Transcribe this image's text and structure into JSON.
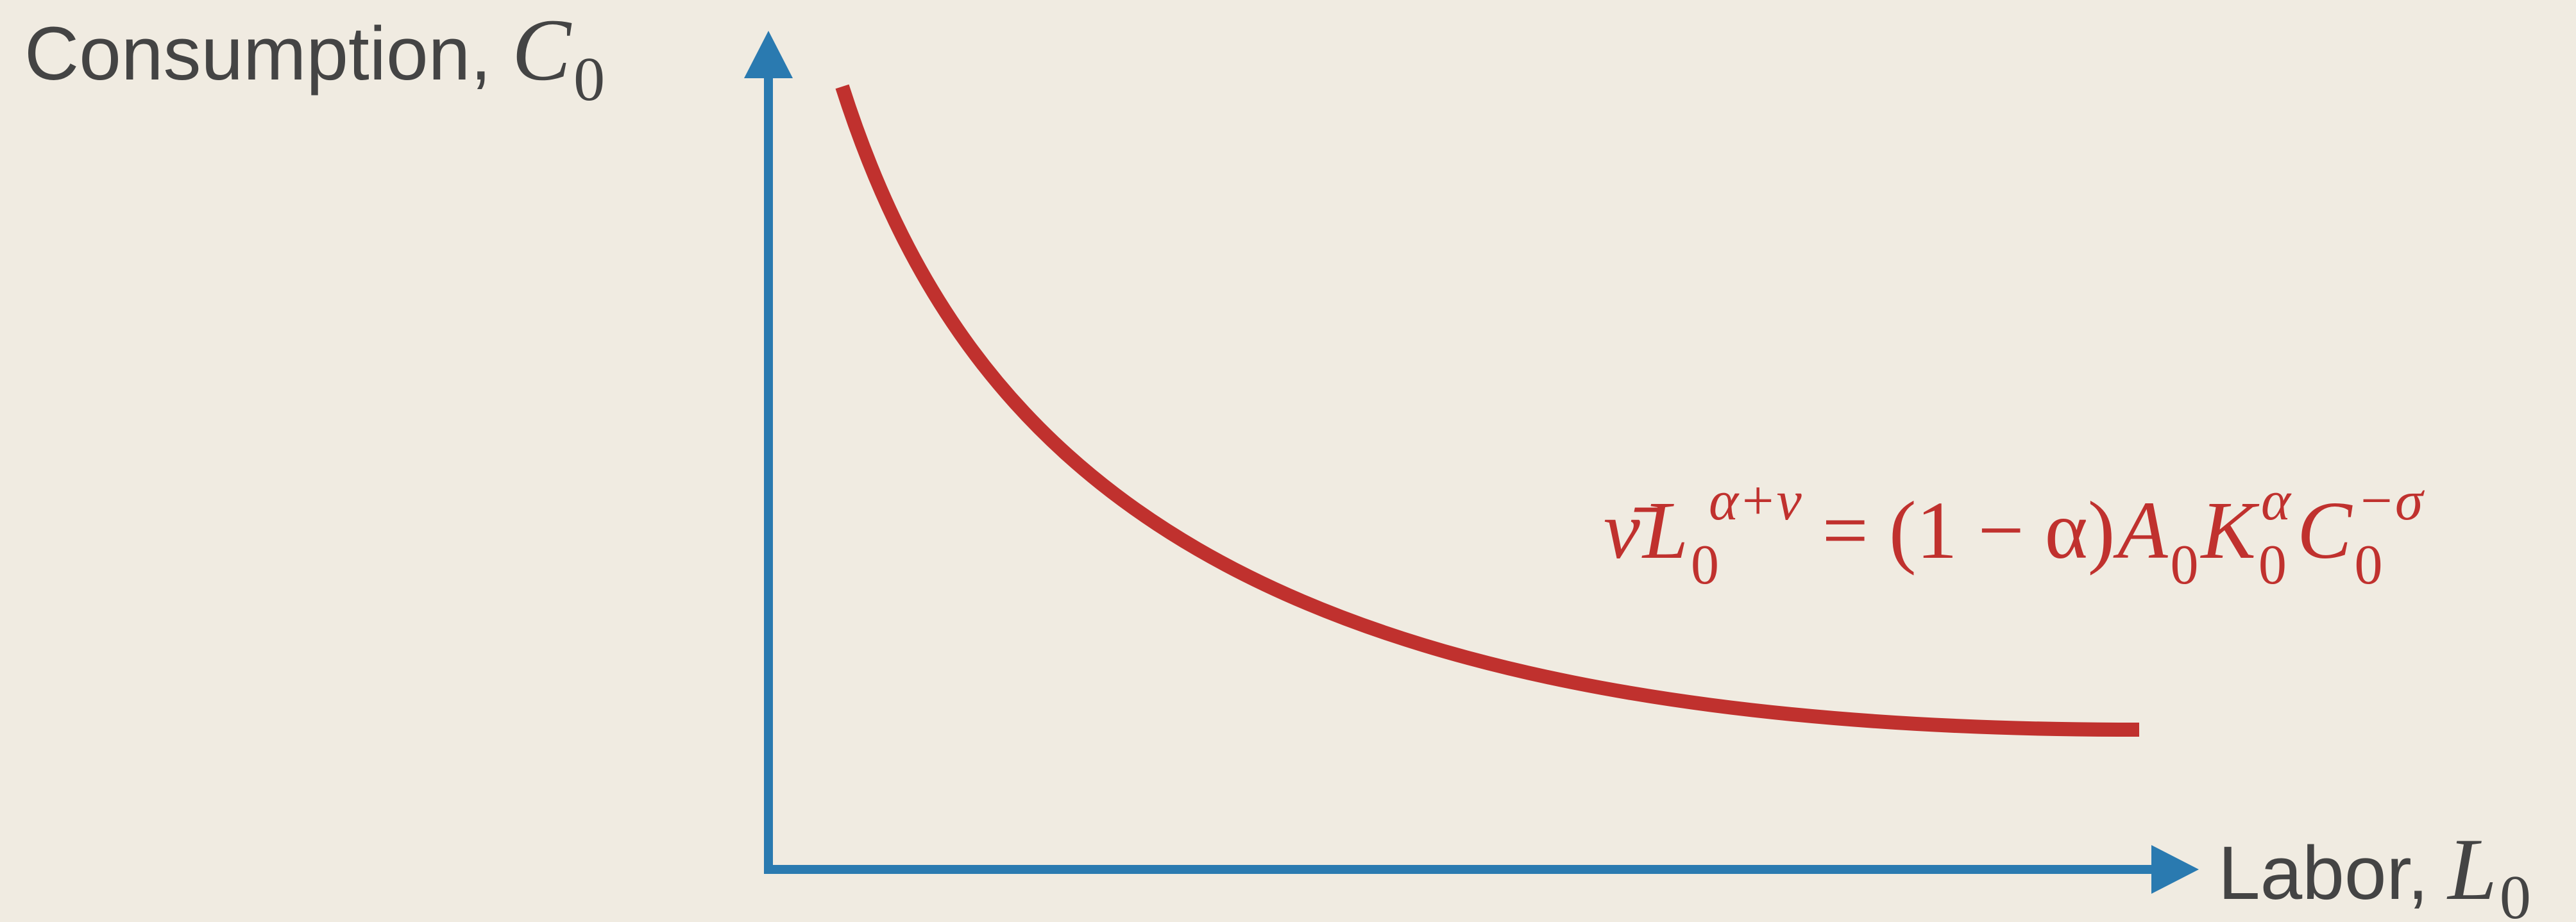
{
  "colors": {
    "background": "#f0ebe1",
    "axis": "#2a7ab0",
    "curve": "#c0312e",
    "text": "#444444"
  },
  "y_axis": {
    "label": "Consumption,",
    "symbol": "C",
    "subscript": "0"
  },
  "x_axis": {
    "label": "Labor,",
    "symbol": "L",
    "subscript": "0"
  },
  "curve_equation": {
    "lhs_coef": "ν̄",
    "lhs_var": "L",
    "lhs_sub": "0",
    "lhs_sup": "α+ν",
    "equals": "=",
    "factor": "(1 − α)",
    "a_var": "A",
    "a_sub": "0",
    "k_var": "K",
    "k_sub": "0",
    "k_sup": "α",
    "c_var": "C",
    "c_sub": "0",
    "c_sup": "−σ"
  }
}
